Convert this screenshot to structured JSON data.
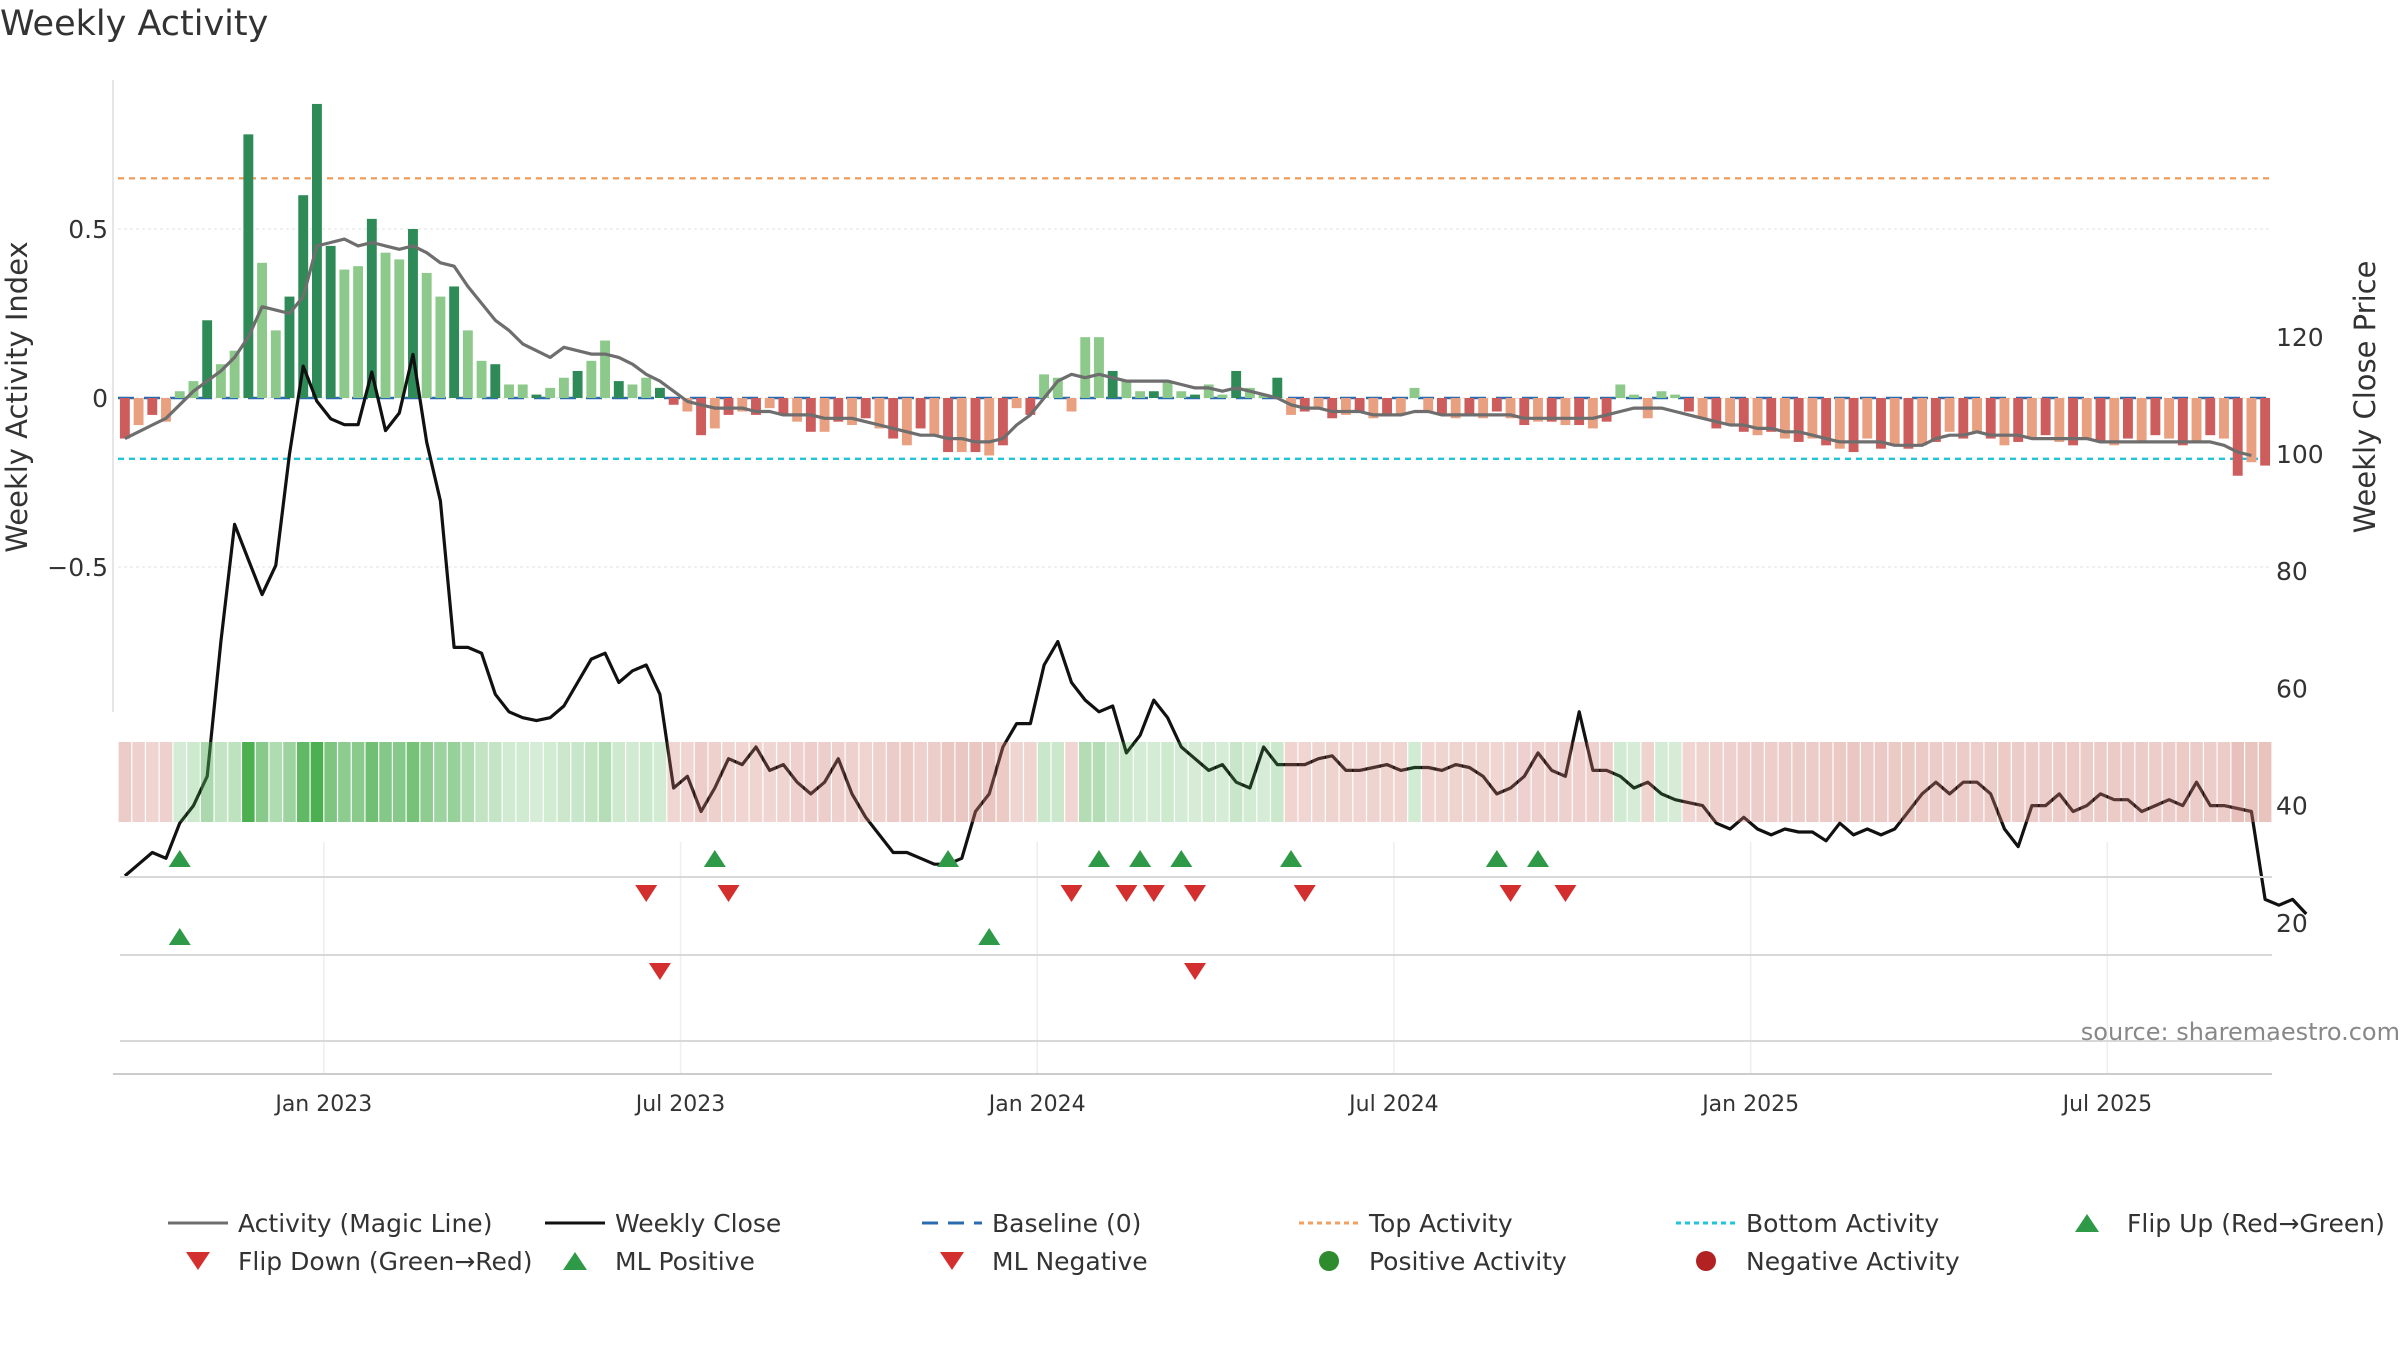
{
  "chart_data": {
    "type": "bar+line",
    "title": "Weekly Activity",
    "ylabel_left": "Weekly Activity Index",
    "ylabel_right": "Weekly Close Price",
    "ylim_left": [
      -0.95,
      0.95
    ],
    "ylim_right": [
      20,
      120
    ],
    "yticks_left": [
      {
        "value": 0.5,
        "label": "0.5"
      },
      {
        "value": 0,
        "label": "0"
      },
      {
        "value": -0.5,
        "label": "−0.5"
      }
    ],
    "yticks_right": [
      120,
      100,
      80,
      60,
      40,
      20
    ],
    "xticks": [
      {
        "week": 15,
        "label": "Jan 2023"
      },
      {
        "week": 41,
        "label": "Jul 2023"
      },
      {
        "week": 67,
        "label": "Jan 2024"
      },
      {
        "week": 93,
        "label": "Jul 2024"
      },
      {
        "week": 119,
        "label": "Jan 2025"
      },
      {
        "week": 145,
        "label": "Jul 2025"
      }
    ],
    "weeks": 157,
    "top_activity": 0.65,
    "bottom_activity": -0.18,
    "baseline": 0,
    "activity": [
      -0.12,
      -0.08,
      -0.05,
      -0.07,
      0.02,
      0.05,
      0.23,
      0.1,
      0.14,
      0.78,
      0.4,
      0.2,
      0.3,
      0.6,
      0.87,
      0.45,
      0.38,
      0.39,
      0.53,
      0.43,
      0.41,
      0.5,
      0.37,
      0.3,
      0.33,
      0.2,
      0.11,
      0.1,
      0.04,
      0.04,
      0.01,
      0.03,
      0.06,
      0.08,
      0.11,
      0.17,
      0.05,
      0.04,
      0.06,
      0.03,
      -0.02,
      -0.04,
      -0.11,
      -0.09,
      -0.05,
      -0.04,
      -0.05,
      -0.03,
      -0.05,
      -0.07,
      -0.1,
      -0.1,
      -0.07,
      -0.08,
      -0.06,
      -0.09,
      -0.12,
      -0.14,
      -0.09,
      -0.11,
      -0.16,
      -0.16,
      -0.16,
      -0.17,
      -0.14,
      -0.03,
      -0.05,
      0.07,
      0.06,
      -0.04,
      0.18,
      0.18,
      0.08,
      0.05,
      0.02,
      0.02,
      0.05,
      0.02,
      0.01,
      0.04,
      0.01,
      0.08,
      0.03,
      0.01,
      0.06,
      -0.05,
      -0.04,
      -0.03,
      -0.06,
      -0.05,
      -0.04,
      -0.06,
      -0.05,
      -0.05,
      0.03,
      -0.04,
      -0.05,
      -0.06,
      -0.05,
      -0.06,
      -0.04,
      -0.06,
      -0.08,
      -0.07,
      -0.07,
      -0.08,
      -0.08,
      -0.09,
      -0.07,
      0.04,
      0.01,
      -0.06,
      0.02,
      0.01,
      -0.04,
      -0.06,
      -0.09,
      -0.08,
      -0.1,
      -0.11,
      -0.1,
      -0.12,
      -0.13,
      -0.12,
      -0.14,
      -0.15,
      -0.16,
      -0.12,
      -0.15,
      -0.14,
      -0.15,
      -0.14,
      -0.13,
      -0.1,
      -0.12,
      -0.1,
      -0.12,
      -0.14,
      -0.13,
      -0.12,
      -0.11,
      -0.13,
      -0.14,
      -0.12,
      -0.13,
      -0.14,
      -0.12,
      -0.13,
      -0.11,
      -0.12,
      -0.14,
      -0.13,
      -0.11,
      -0.12,
      -0.23,
      -0.19,
      -0.2
    ],
    "magic_line": [
      -0.12,
      -0.1,
      -0.08,
      -0.06,
      -0.02,
      0.02,
      0.05,
      0.08,
      0.12,
      0.18,
      0.27,
      0.26,
      0.25,
      0.3,
      0.45,
      0.46,
      0.47,
      0.45,
      0.46,
      0.45,
      0.44,
      0.45,
      0.43,
      0.4,
      0.39,
      0.33,
      0.28,
      0.23,
      0.2,
      0.16,
      0.14,
      0.12,
      0.15,
      0.14,
      0.13,
      0.13,
      0.12,
      0.1,
      0.07,
      0.05,
      0.02,
      -0.01,
      -0.02,
      -0.03,
      -0.03,
      -0.03,
      -0.04,
      -0.04,
      -0.05,
      -0.05,
      -0.05,
      -0.06,
      -0.06,
      -0.06,
      -0.07,
      -0.08,
      -0.09,
      -0.1,
      -0.11,
      -0.11,
      -0.12,
      -0.12,
      -0.13,
      -0.13,
      -0.12,
      -0.08,
      -0.05,
      0.0,
      0.05,
      0.07,
      0.06,
      0.07,
      0.06,
      0.05,
      0.05,
      0.05,
      0.05,
      0.04,
      0.03,
      0.03,
      0.02,
      0.03,
      0.02,
      0.01,
      0.0,
      -0.02,
      -0.03,
      -0.03,
      -0.04,
      -0.04,
      -0.04,
      -0.05,
      -0.05,
      -0.05,
      -0.04,
      -0.04,
      -0.05,
      -0.05,
      -0.05,
      -0.05,
      -0.05,
      -0.05,
      -0.06,
      -0.06,
      -0.06,
      -0.06,
      -0.06,
      -0.06,
      -0.05,
      -0.04,
      -0.03,
      -0.03,
      -0.03,
      -0.04,
      -0.05,
      -0.06,
      -0.07,
      -0.08,
      -0.08,
      -0.09,
      -0.09,
      -0.1,
      -0.1,
      -0.11,
      -0.12,
      -0.13,
      -0.13,
      -0.13,
      -0.13,
      -0.14,
      -0.14,
      -0.14,
      -0.12,
      -0.11,
      -0.11,
      -0.1,
      -0.11,
      -0.11,
      -0.11,
      -0.12,
      -0.12,
      -0.12,
      -0.12,
      -0.12,
      -0.13,
      -0.13,
      -0.13,
      -0.13,
      -0.13,
      -0.13,
      -0.13,
      -0.13,
      -0.13,
      -0.14,
      -0.16,
      -0.17
    ],
    "close": [
      28,
      30,
      32,
      31,
      37,
      40,
      45,
      68,
      88,
      82,
      76,
      81,
      100,
      115,
      109,
      106,
      105,
      105,
      114,
      104,
      107,
      117,
      102,
      92,
      67,
      67,
      66,
      59,
      56,
      55,
      54.5,
      55,
      57,
      61,
      65,
      66,
      61,
      63,
      64,
      59,
      43,
      45,
      39,
      43,
      48,
      47,
      50,
      46,
      47,
      44,
      42,
      44,
      48,
      42,
      38,
      35,
      32,
      32,
      31,
      30,
      30,
      31,
      39,
      42,
      50,
      54,
      54,
      64,
      68,
      61,
      58,
      56,
      57,
      49,
      52,
      58,
      55,
      50,
      48,
      46,
      47,
      44,
      43,
      50,
      47,
      47,
      47,
      48,
      48.5,
      46,
      46,
      46.5,
      47,
      46,
      46.5,
      46.5,
      46,
      47,
      46.5,
      45,
      42,
      43,
      45,
      49,
      46,
      45,
      56,
      46,
      46,
      45,
      43,
      44,
      42,
      41,
      40.5,
      40,
      37,
      36,
      38,
      36,
      35,
      36,
      35.5,
      35.5,
      34,
      37,
      35,
      36,
      35,
      36,
      39,
      42,
      44,
      42,
      44,
      44,
      42,
      36,
      33,
      40,
      40,
      42,
      39,
      40,
      42,
      41,
      41,
      39,
      40,
      41,
      40,
      44,
      40,
      40,
      39.5,
      39,
      24,
      23,
      24,
      21.5
    ],
    "flip_up_weeks": [
      4,
      43,
      60,
      71,
      74,
      77,
      85,
      100,
      103
    ],
    "flip_down_weeks": [
      38,
      44,
      69,
      73,
      75,
      78,
      86,
      101,
      105
    ],
    "ml_positive_weeks": [
      4,
      63
    ],
    "ml_negative_weeks": [
      39,
      78
    ],
    "heatmap_note": "strip color per week follows activity value (green positive, red negative)",
    "legend": [
      {
        "key": "magic",
        "label": "Activity (Magic Line)",
        "color": "#6e6e6e"
      },
      {
        "key": "close",
        "label": "Weekly Close",
        "color": "#111111"
      },
      {
        "key": "baseline",
        "label": "Baseline (0)",
        "color": "#2b6cb0"
      },
      {
        "key": "top",
        "label": "Top Activity",
        "color": "#f0a060"
      },
      {
        "key": "bottom",
        "label": "Bottom Activity",
        "color": "#22c4d8"
      },
      {
        "key": "flipup",
        "label": "Flip Up (Red→Green)",
        "color": "#2e9a48"
      },
      {
        "key": "flipdown",
        "label": "Flip Down (Green→Red)",
        "color": "#d32f2f"
      },
      {
        "key": "mlpos",
        "label": "ML Positive",
        "color": "#2e9a48"
      },
      {
        "key": "mlneg",
        "label": "ML Negative",
        "color": "#d32f2f"
      },
      {
        "key": "pos",
        "label": "Positive Activity",
        "color": "#2e8b2e"
      },
      {
        "key": "neg",
        "label": "Negative Activity",
        "color": "#b22222"
      }
    ]
  },
  "source_text": "source: sharemaestro.com",
  "colors": {
    "pos_strong": "#2e8b57",
    "pos_light": "#8cc98a",
    "neg_strong": "#cd5c5c",
    "neg_light": "#e9a080"
  }
}
